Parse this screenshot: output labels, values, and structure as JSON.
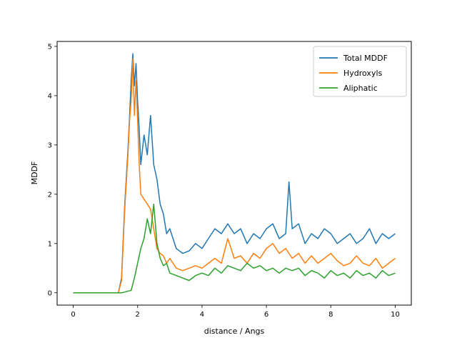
{
  "chart_data": {
    "type": "line",
    "title": "",
    "xlabel": "distance / Angs",
    "ylabel": "MDDF",
    "xlim": [
      -0.5,
      10.5
    ],
    "ylim": [
      -0.25,
      5.1
    ],
    "xticks": [
      0,
      2,
      4,
      6,
      8,
      10
    ],
    "yticks": [
      0,
      1,
      2,
      3,
      4,
      5
    ],
    "legend_position": "top-right",
    "series": [
      {
        "name": "Total MDDF",
        "color": "#1f77b4",
        "x": [
          0.0,
          1.4,
          1.5,
          1.6,
          1.7,
          1.75,
          1.8,
          1.85,
          1.9,
          1.95,
          2.0,
          2.05,
          2.1,
          2.2,
          2.3,
          2.4,
          2.5,
          2.6,
          2.7,
          2.8,
          2.9,
          3.0,
          3.2,
          3.4,
          3.6,
          3.8,
          4.0,
          4.2,
          4.4,
          4.6,
          4.8,
          5.0,
          5.2,
          5.4,
          5.6,
          5.8,
          6.0,
          6.2,
          6.4,
          6.6,
          6.7,
          6.8,
          7.0,
          7.2,
          7.4,
          7.6,
          7.8,
          8.0,
          8.2,
          8.4,
          8.6,
          8.8,
          9.0,
          9.2,
          9.4,
          9.6,
          9.8,
          10.0
        ],
        "y": [
          0.0,
          0.0,
          0.3,
          1.8,
          2.9,
          3.6,
          4.3,
          4.85,
          4.2,
          4.65,
          3.9,
          3.3,
          2.6,
          3.2,
          2.8,
          3.6,
          2.6,
          2.3,
          1.8,
          1.6,
          1.2,
          1.3,
          0.9,
          0.8,
          0.85,
          1.0,
          0.9,
          1.1,
          1.3,
          1.2,
          1.4,
          1.2,
          1.3,
          1.0,
          1.2,
          1.1,
          1.3,
          1.4,
          1.1,
          1.2,
          2.25,
          1.3,
          1.4,
          1.0,
          1.2,
          1.1,
          1.3,
          1.2,
          1.0,
          1.1,
          1.2,
          1.0,
          1.1,
          1.3,
          1.0,
          1.2,
          1.1,
          1.2
        ]
      },
      {
        "name": "Hydroxyls",
        "color": "#ff7f0e",
        "x": [
          0.0,
          1.4,
          1.5,
          1.6,
          1.7,
          1.75,
          1.8,
          1.85,
          1.9,
          1.95,
          2.0,
          2.05,
          2.1,
          2.2,
          2.3,
          2.4,
          2.5,
          2.6,
          2.7,
          2.8,
          2.9,
          3.0,
          3.2,
          3.4,
          3.6,
          3.8,
          4.0,
          4.2,
          4.4,
          4.6,
          4.8,
          5.0,
          5.2,
          5.4,
          5.6,
          5.8,
          6.0,
          6.2,
          6.4,
          6.6,
          6.8,
          7.0,
          7.2,
          7.4,
          7.6,
          7.8,
          8.0,
          8.2,
          8.4,
          8.6,
          8.8,
          9.0,
          9.2,
          9.4,
          9.6,
          9.8,
          10.0
        ],
        "y": [
          0.0,
          0.0,
          0.25,
          1.7,
          2.8,
          3.5,
          3.9,
          4.75,
          3.6,
          4.3,
          3.5,
          2.6,
          2.0,
          1.9,
          1.8,
          1.7,
          1.3,
          0.9,
          0.8,
          0.75,
          0.6,
          0.7,
          0.5,
          0.45,
          0.5,
          0.55,
          0.5,
          0.6,
          0.7,
          0.6,
          1.1,
          0.7,
          0.75,
          0.6,
          0.8,
          0.7,
          0.9,
          1.0,
          0.8,
          0.9,
          0.7,
          0.8,
          0.6,
          0.75,
          0.6,
          0.7,
          0.8,
          0.65,
          0.55,
          0.6,
          0.75,
          0.6,
          0.55,
          0.7,
          0.5,
          0.6,
          0.7
        ]
      },
      {
        "name": "Aliphatic",
        "color": "#2ca02c",
        "x": [
          0.0,
          1.5,
          1.8,
          1.9,
          2.0,
          2.1,
          2.2,
          2.3,
          2.4,
          2.5,
          2.6,
          2.7,
          2.8,
          2.9,
          3.0,
          3.2,
          3.4,
          3.6,
          3.8,
          4.0,
          4.2,
          4.4,
          4.6,
          4.8,
          5.0,
          5.2,
          5.4,
          5.6,
          5.8,
          6.0,
          6.2,
          6.4,
          6.6,
          6.8,
          7.0,
          7.2,
          7.4,
          7.6,
          7.8,
          8.0,
          8.2,
          8.4,
          8.6,
          8.8,
          9.0,
          9.2,
          9.4,
          9.6,
          9.8,
          10.0
        ],
        "y": [
          0.0,
          0.0,
          0.05,
          0.3,
          0.6,
          0.9,
          1.1,
          1.5,
          1.2,
          1.8,
          1.0,
          0.7,
          0.55,
          0.6,
          0.4,
          0.35,
          0.3,
          0.25,
          0.35,
          0.4,
          0.35,
          0.5,
          0.4,
          0.55,
          0.5,
          0.45,
          0.6,
          0.5,
          0.55,
          0.45,
          0.5,
          0.4,
          0.5,
          0.45,
          0.5,
          0.35,
          0.45,
          0.4,
          0.3,
          0.45,
          0.35,
          0.4,
          0.3,
          0.45,
          0.35,
          0.4,
          0.3,
          0.45,
          0.35,
          0.4
        ]
      }
    ]
  }
}
